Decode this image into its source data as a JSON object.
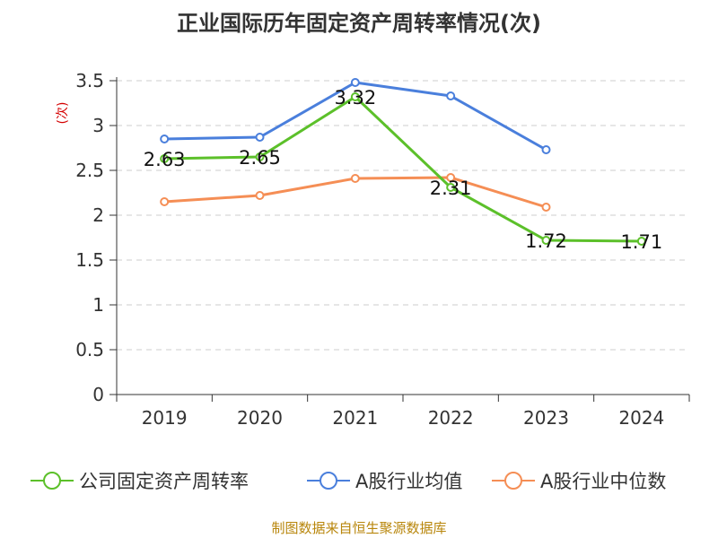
{
  "chart_data": {
    "type": "line",
    "title": "正业国际历年固定资产周转率情况(次)",
    "ylabel": "(次)",
    "xlabel": "",
    "ylim": [
      0,
      3.5
    ],
    "yticks": [
      "0",
      "0.5",
      "1",
      "1.5",
      "2",
      "2.5",
      "3",
      "3.5"
    ],
    "categories": [
      "2019",
      "2020",
      "2021",
      "2022",
      "2023",
      "2024"
    ],
    "grid": true,
    "legend_position": "bottom",
    "series": [
      {
        "name": "公司固定资产周转率",
        "color": "#5cc02a",
        "values": [
          2.63,
          2.65,
          3.32,
          2.31,
          1.72,
          1.71
        ],
        "labels": [
          "2.63",
          "2.65",
          "3.32",
          "2.31",
          "1.72",
          "1.71"
        ]
      },
      {
        "name": "A股行业均值",
        "color": "#4a7fdc",
        "values": [
          2.85,
          2.87,
          3.48,
          3.33,
          2.73,
          null
        ]
      },
      {
        "name": "A股行业中位数",
        "color": "#f58e55",
        "values": [
          2.15,
          2.22,
          2.41,
          2.42,
          2.09,
          null
        ]
      }
    ]
  },
  "footer": {
    "source": "制图数据来自恒生聚源数据库"
  }
}
